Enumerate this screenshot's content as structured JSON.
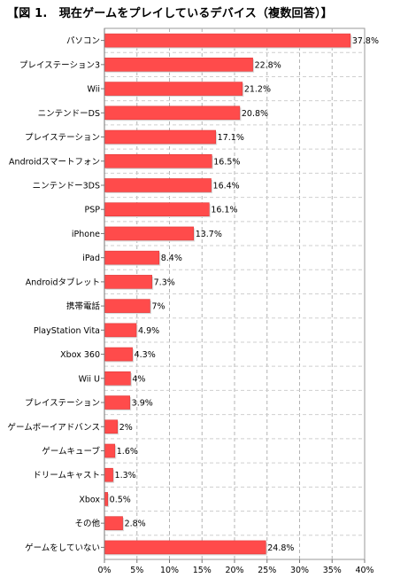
{
  "chart_data": {
    "type": "bar",
    "orientation": "horizontal",
    "title": "【図 1.　現在ゲームをプレイしているデバイス（複数回答）】",
    "xlabel": "",
    "ylabel": "",
    "xlim": [
      0,
      40
    ],
    "x_ticks": [
      "0%",
      "5%",
      "10%",
      "15%",
      "20%",
      "25%",
      "30%",
      "35%",
      "40%"
    ],
    "grid": true,
    "bar_color": "#ff4b4b",
    "categories": [
      "パソコン",
      "プレイステーション3",
      "Wii",
      "ニンテンドーDS",
      "プレイステーション",
      "Androidスマートフォン",
      "ニンテンドー3DS",
      "PSP",
      "iPhone",
      "iPad",
      "Androidタブレット",
      "携帯電話",
      "PlayStation Vita",
      "Xbox 360",
      "Wii U",
      "プレイステーション",
      "ゲームボーイアドバンス",
      "ゲームキューブ",
      "ドリームキャスト",
      "Xbox",
      "その他",
      "ゲームをしていない"
    ],
    "values": [
      37.8,
      22.8,
      21.2,
      20.8,
      17.1,
      16.5,
      16.4,
      16.1,
      13.7,
      8.4,
      7.3,
      7,
      4.9,
      4.3,
      4,
      3.9,
      2,
      1.6,
      1.3,
      0.5,
      2.8,
      24.8
    ],
    "value_labels": [
      "37.8%",
      "22.8%",
      "21.2%",
      "20.8%",
      "17.1%",
      "16.5%",
      "16.4%",
      "16.1%",
      "13.7%",
      "8.4%",
      "7.3%",
      "7%",
      "4.9%",
      "4.3%",
      "4%",
      "3.9%",
      "2%",
      "1.6%",
      "1.3%",
      "0.5%",
      "2.8%",
      "24.8%"
    ]
  }
}
